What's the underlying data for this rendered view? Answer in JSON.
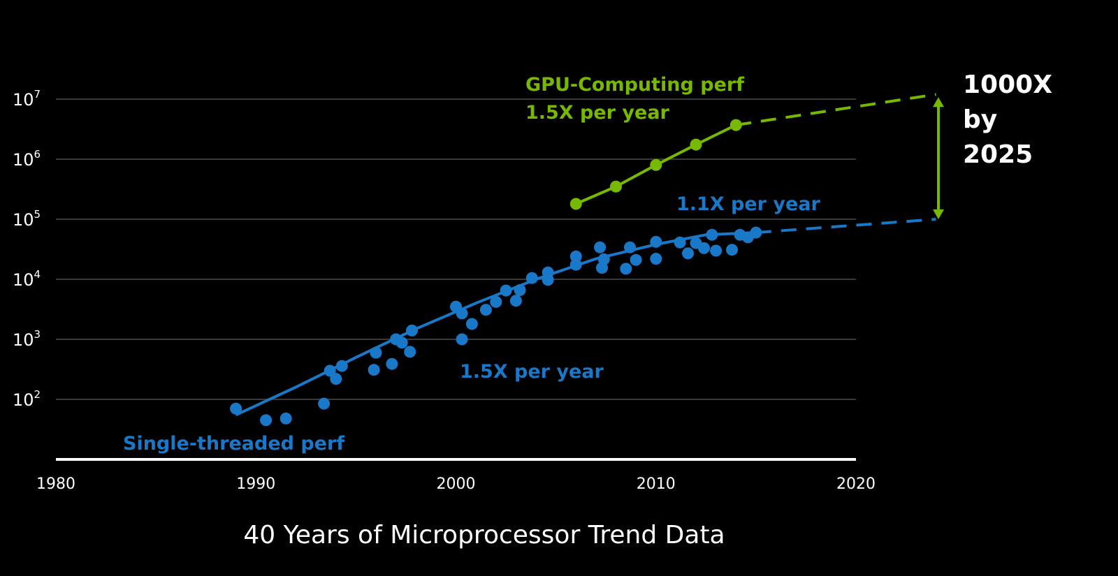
{
  "chart_data": {
    "type": "scatter",
    "title": "40 Years of Microprocessor Trend Data",
    "x_range": [
      1980,
      2020
    ],
    "x_ticks": [
      1980,
      1990,
      2000,
      2010,
      2020
    ],
    "y_scale": "log",
    "y_range": [
      10,
      10000000
    ],
    "y_ticks": [
      {
        "value": 100,
        "label_base": "10",
        "label_exp": "2"
      },
      {
        "value": 1000,
        "label_base": "10",
        "label_exp": "3"
      },
      {
        "value": 10000,
        "label_base": "10",
        "label_exp": "4"
      },
      {
        "value": 100000,
        "label_base": "10",
        "label_exp": "5"
      },
      {
        "value": 1000000,
        "label_base": "10",
        "label_exp": "6"
      },
      {
        "value": 10000000,
        "label_base": "10",
        "label_exp": "7"
      }
    ],
    "grid": true,
    "series": [
      {
        "name": "Single-threaded perf",
        "color": "#1a78c8",
        "points": [
          [
            1989.0,
            70
          ],
          [
            1990.5,
            45
          ],
          [
            1991.5,
            48
          ],
          [
            1993.4,
            85
          ],
          [
            1993.7,
            300
          ],
          [
            1994.0,
            220
          ],
          [
            1994.3,
            360
          ],
          [
            1995.9,
            310
          ],
          [
            1996.0,
            600
          ],
          [
            1996.8,
            390
          ],
          [
            1997.0,
            1000
          ],
          [
            1997.3,
            880
          ],
          [
            1997.7,
            620
          ],
          [
            1997.8,
            1400
          ],
          [
            2000.0,
            3500
          ],
          [
            2000.3,
            2700
          ],
          [
            2000.3,
            1000
          ],
          [
            2000.8,
            1800
          ],
          [
            2001.5,
            3100
          ],
          [
            2002.0,
            4200
          ],
          [
            2002.5,
            6500
          ],
          [
            2003.0,
            4400
          ],
          [
            2003.2,
            6600
          ],
          [
            2003.8,
            10500
          ],
          [
            2004.6,
            13000
          ],
          [
            2004.6,
            9800
          ],
          [
            2006.0,
            24000
          ],
          [
            2006.0,
            17500
          ],
          [
            2007.2,
            34000
          ],
          [
            2007.3,
            15500
          ],
          [
            2007.4,
            21500
          ],
          [
            2008.5,
            15000
          ],
          [
            2008.7,
            34000
          ],
          [
            2009.0,
            21000
          ],
          [
            2010.0,
            42000
          ],
          [
            2010.0,
            22000
          ],
          [
            2011.2,
            41000
          ],
          [
            2011.6,
            27000
          ],
          [
            2012.0,
            40000
          ],
          [
            2012.4,
            33000
          ],
          [
            2012.8,
            55000
          ],
          [
            2013.0,
            30000
          ],
          [
            2013.8,
            31000
          ],
          [
            2014.2,
            55000
          ],
          [
            2014.6,
            50000
          ],
          [
            2015.0,
            60000
          ]
        ],
        "trend": [
          [
            1989.0,
            55
          ],
          [
            1992.0,
            160
          ],
          [
            1995.0,
            500
          ],
          [
            1998.0,
            1500
          ],
          [
            2001.0,
            4000
          ],
          [
            2004.0,
            10000
          ],
          [
            2007.0,
            22000
          ],
          [
            2010.0,
            38000
          ],
          [
            2012.5,
            55000
          ],
          [
            2015.0,
            60000
          ]
        ],
        "projection": [
          [
            2015.0,
            60000
          ],
          [
            2024.0,
            100000
          ]
        ]
      },
      {
        "name": "GPU-Computing perf",
        "color": "#76b900",
        "points": [
          [
            2006.0,
            180000
          ],
          [
            2008.0,
            350000
          ],
          [
            2010.0,
            800000
          ],
          [
            2012.0,
            1750000
          ],
          [
            2014.0,
            3700000
          ]
        ],
        "projection": [
          [
            2014.0,
            3700000
          ],
          [
            2024.0,
            12000000
          ]
        ]
      }
    ],
    "annotations": {
      "gpu_title": "GPU-Computing perf",
      "gpu_rate": "1.5X per year",
      "cpu_late_rate": "1.1X per year",
      "cpu_early_rate": "1.5X per year",
      "cpu_label": "Single-threaded perf",
      "gap_line1": "1000X",
      "gap_line2": "by",
      "gap_line3": "2025",
      "gap_span": [
        100000,
        12000000
      ]
    }
  }
}
